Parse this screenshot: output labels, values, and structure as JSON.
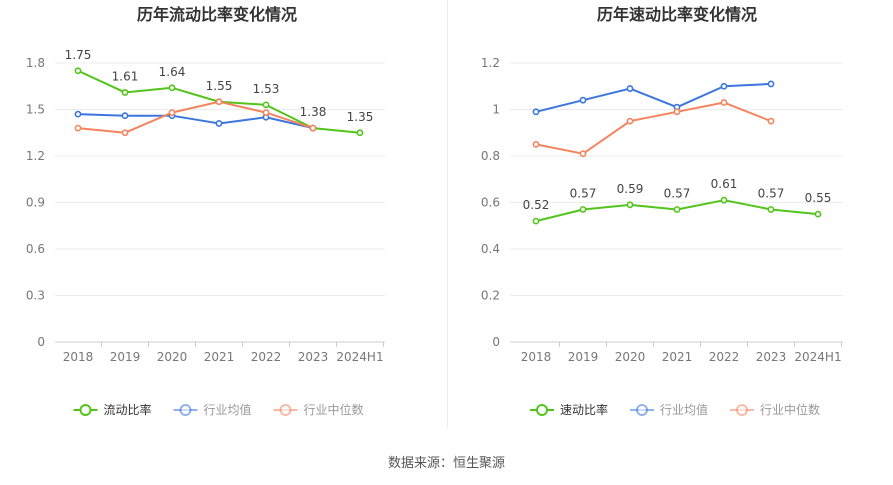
{
  "chart_data": [
    {
      "type": "line",
      "title": "历年流动比率变化情况",
      "categories": [
        "2018",
        "2019",
        "2020",
        "2021",
        "2022",
        "2023",
        "2024H1"
      ],
      "ylim": [
        0,
        1.8
      ],
      "yticks": [
        "0",
        "0.3",
        "0.6",
        "0.9",
        "1.2",
        "1.5",
        "1.8"
      ],
      "grid": true,
      "legend_position": "bottom",
      "series": [
        {
          "name": "流动比率",
          "color": "#52c41a",
          "values": [
            1.75,
            1.61,
            1.64,
            1.55,
            1.53,
            1.38,
            1.35
          ],
          "labels": [
            "1.75",
            "1.61",
            "1.64",
            "1.55",
            "1.53",
            "1.38",
            "1.35"
          ]
        },
        {
          "name": "行业均值",
          "color": "#3b76de",
          "values": [
            1.47,
            1.46,
            1.46,
            1.41,
            1.45,
            1.38,
            null
          ]
        },
        {
          "name": "行业中位数",
          "color": "#f4845f",
          "values": [
            1.38,
            1.35,
            1.48,
            1.55,
            1.48,
            1.38,
            null
          ]
        }
      ]
    },
    {
      "type": "line",
      "title": "历年速动比率变化情况",
      "categories": [
        "2018",
        "2019",
        "2020",
        "2021",
        "2022",
        "2023",
        "2024H1"
      ],
      "ylim": [
        0,
        1.2
      ],
      "yticks": [
        "0",
        "0.2",
        "0.4",
        "0.6",
        "0.8",
        "1",
        "1.2"
      ],
      "grid": true,
      "legend_position": "bottom",
      "series": [
        {
          "name": "速动比率",
          "color": "#52c41a",
          "values": [
            0.52,
            0.57,
            0.59,
            0.57,
            0.61,
            0.57,
            0.55
          ],
          "labels": [
            "0.52",
            "0.57",
            "0.59",
            "0.57",
            "0.61",
            "0.57",
            "0.55"
          ]
        },
        {
          "name": "行业均值",
          "color": "#3b76de",
          "values": [
            0.99,
            1.04,
            1.09,
            1.01,
            1.1,
            1.11,
            null
          ]
        },
        {
          "name": "行业中位数",
          "color": "#f4845f",
          "values": [
            0.85,
            0.81,
            0.95,
            0.99,
            1.03,
            0.95,
            null
          ]
        }
      ]
    }
  ],
  "source_text": "数据来源：恒生聚源"
}
